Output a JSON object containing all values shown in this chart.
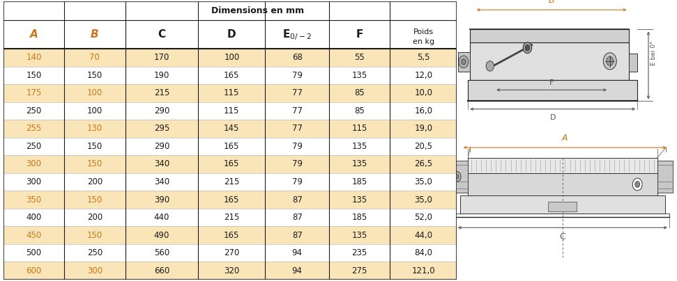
{
  "rows": [
    [
      "140",
      "70",
      "170",
      "100",
      "68",
      "55",
      "5,5"
    ],
    [
      "150",
      "150",
      "190",
      "165",
      "79",
      "135",
      "12,0"
    ],
    [
      "175",
      "100",
      "215",
      "115",
      "77",
      "85",
      "10,0"
    ],
    [
      "250",
      "100",
      "290",
      "115",
      "77",
      "85",
      "16,0"
    ],
    [
      "255",
      "130",
      "295",
      "145",
      "77",
      "115",
      "19,0"
    ],
    [
      "250",
      "150",
      "290",
      "165",
      "79",
      "135",
      "20,5"
    ],
    [
      "300",
      "150",
      "340",
      "165",
      "79",
      "135",
      "26,5"
    ],
    [
      "300",
      "200",
      "340",
      "215",
      "79",
      "185",
      "35,0"
    ],
    [
      "350",
      "150",
      "390",
      "165",
      "87",
      "135",
      "35,0"
    ],
    [
      "400",
      "200",
      "440",
      "215",
      "87",
      "185",
      "52,0"
    ],
    [
      "450",
      "150",
      "490",
      "165",
      "87",
      "135",
      "44,0"
    ],
    [
      "500",
      "250",
      "560",
      "270",
      "94",
      "235",
      "84,0"
    ],
    [
      "600",
      "300",
      "660",
      "320",
      "94",
      "275",
      "121,0"
    ]
  ],
  "odd_row_bg": "#FAE5B8",
  "even_row_bg": "#FFFFFF",
  "orange_color": "#C8781A",
  "black_color": "#1A1A1A",
  "line_color": "#555555",
  "dim_color": "#C8781A",
  "col_raw_widths": [
    1.0,
    1.0,
    1.2,
    1.1,
    1.05,
    1.0,
    1.1
  ],
  "title_dim": "Dimensions en mm",
  "col_labels": [
    "A",
    "B",
    "C",
    "D",
    "E$_{0/-2}$",
    "F",
    "Poids\nen kg"
  ],
  "ab_orange": [
    true,
    true,
    false,
    false,
    false,
    false,
    false
  ]
}
